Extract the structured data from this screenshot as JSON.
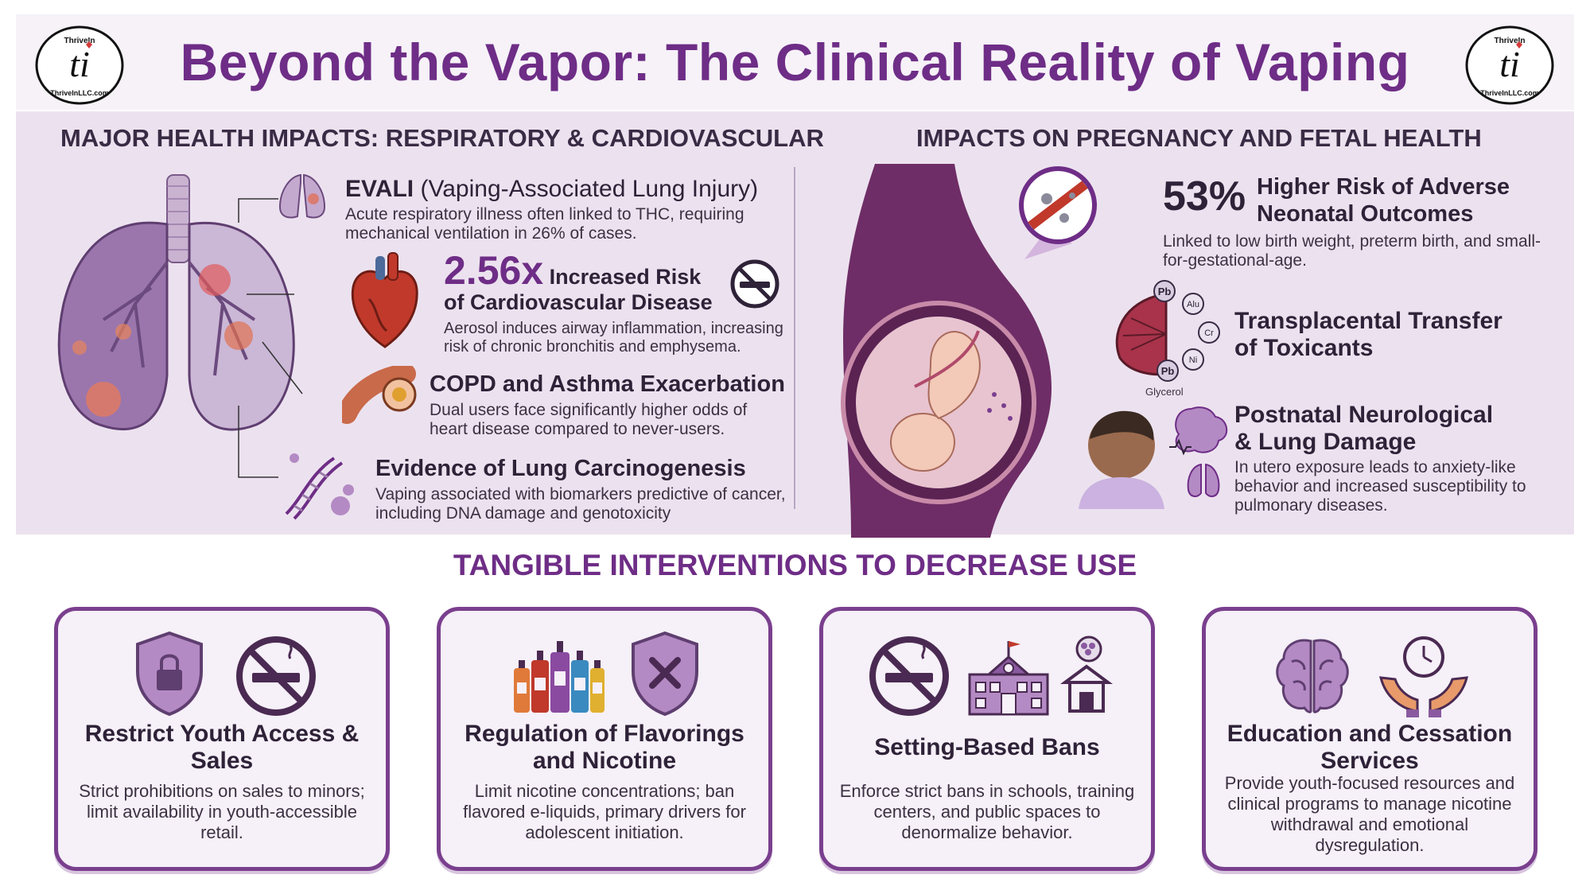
{
  "header": {
    "title": "Beyond the Vapor: The Clinical Reality of Vaping",
    "logo_top_text": "ThriveIn",
    "logo_monogram": "ti",
    "logo_bottom_text": "ThriveInLLC.com"
  },
  "respiratory": {
    "section_title": "MAJOR HEALTH IMPACTS: RESPIRATORY & CARDIOVASCULAR",
    "evali": {
      "title_bold": "EVALI",
      "title_rest": "(Vaping-Associated Lung Injury)",
      "desc": "Acute respiratory illness often linked to THC, requiring mechanical ventilation in 26% of cases."
    },
    "cardio": {
      "stat": "2.56x",
      "title_line1": "Increased Risk",
      "title_line2": "of Cardiovascular Disease",
      "desc": "Aerosol induces airway inflammation, increasing risk of chronic bronchitis and emphysema."
    },
    "copd": {
      "title": "COPD and Asthma Exacerbation",
      "desc": "Dual users face significantly higher odds of heart disease compared to never-users."
    },
    "carcino": {
      "title": "Evidence of Lung Carcinogenesis",
      "desc": "Vaping associated with biomarkers predictive of cancer, including DNA damage and genotoxicity"
    }
  },
  "pregnancy": {
    "section_title": "IMPACTS ON PREGNANCY AND FETAL HEALTH",
    "neonatal": {
      "stat": "53%",
      "title_line1": "Higher Risk of Adverse",
      "title_line2": "Neonatal Outcomes",
      "desc": "Linked to low birth weight, preterm birth, and small-for-gestational-age."
    },
    "transplacental": {
      "title_line1": "Transplacental Transfer",
      "title_line2": "of Toxicants",
      "toxicants": [
        "Pb",
        "Alu",
        "Cr",
        "Ni",
        "Pb"
      ],
      "glycerol_label": "Glycerol"
    },
    "postnatal": {
      "title_line1": "Postnatal Neurological",
      "title_line2": "& Lung Damage",
      "desc": "In utero exposure leads to anxiety-like behavior and increased susceptibility to pulmonary diseases."
    }
  },
  "interventions": {
    "section_title": "TANGIBLE INTERVENTIONS TO DECREASE USE",
    "cards": [
      {
        "title": "Restrict Youth Access & Sales",
        "desc": "Strict prohibitions on sales to minors; limit availability in youth-accessible retail."
      },
      {
        "title": "Regulation of Flavorings and Nicotine",
        "desc": "Limit nicotine concentrations; ban flavored e-liquids, primary drivers for adolescent initiation."
      },
      {
        "title": "Setting-Based Bans",
        "desc": "Enforce strict bans in schools, training centers, and public spaces to denormalize behavior."
      },
      {
        "title": "Education and Cessation Services",
        "desc": "Provide youth-focused resources and clinical programs to manage nicotine withdrawal and emotional dysregulation."
      }
    ]
  },
  "colors": {
    "accent": "#6e2d86",
    "panel": "#ece2ef",
    "card_border": "#7a3f8e",
    "text_dark": "#2e2238"
  }
}
